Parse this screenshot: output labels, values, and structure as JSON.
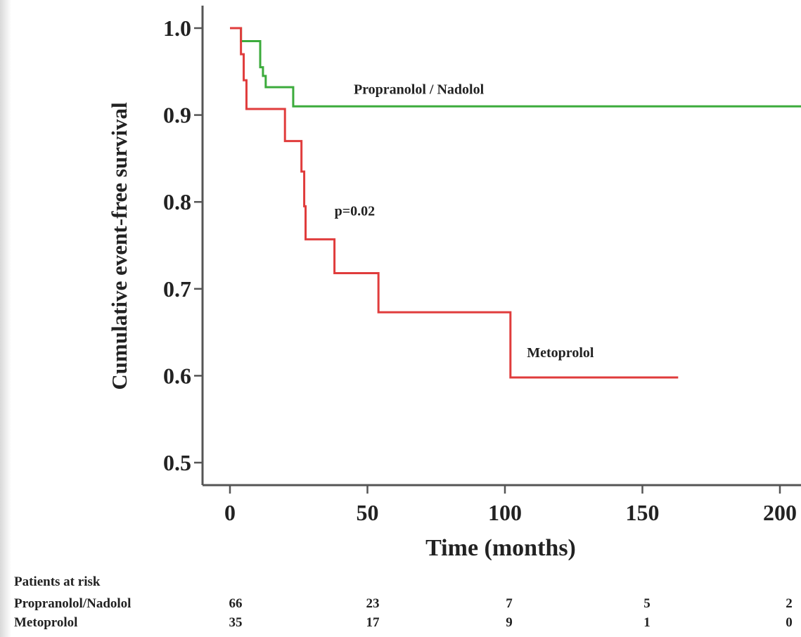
{
  "chart_data": {
    "type": "line",
    "subtype": "kaplan-meier",
    "title": "",
    "xlabel": "Time (months)",
    "ylabel": "Cumulative event-free survival",
    "xlim": [
      0,
      210
    ],
    "ylim": [
      0.5,
      1.0
    ],
    "x_ticks": [
      "0",
      "50",
      "100",
      "150",
      "200"
    ],
    "y_ticks": [
      "0.5",
      "0.6",
      "0.7",
      "0.8",
      "0.9",
      "1.0"
    ],
    "grid": false,
    "series": [
      {
        "name": "Propranolol / Nadolol",
        "color": "#3cab3c",
        "steps": [
          [
            0,
            1.0
          ],
          [
            4,
            0.985
          ],
          [
            11,
            0.955
          ],
          [
            12,
            0.945
          ],
          [
            13,
            0.932
          ],
          [
            23,
            0.91
          ],
          [
            210,
            0.91
          ]
        ]
      },
      {
        "name": "Metoprolol",
        "color": "#e03c3c",
        "steps": [
          [
            0,
            1.0
          ],
          [
            4,
            0.97
          ],
          [
            5,
            0.94
          ],
          [
            6,
            0.907
          ],
          [
            20,
            0.87
          ],
          [
            26,
            0.835
          ],
          [
            27,
            0.795
          ],
          [
            27.5,
            0.757
          ],
          [
            38,
            0.718
          ],
          [
            54,
            0.673
          ],
          [
            102,
            0.598
          ],
          [
            163,
            0.598
          ]
        ]
      }
    ],
    "annotations": [
      {
        "text": "Propranolol / Nadolol",
        "x": 45,
        "y": 0.93
      },
      {
        "text": "p=0.02",
        "x": 38,
        "y": 0.79
      },
      {
        "text": "Metoprolol",
        "x": 108,
        "y": 0.627
      }
    ]
  },
  "risk_table": {
    "title": "Patients at risk",
    "rows": [
      {
        "label": "Propranolol/Nadolol",
        "values": [
          "66",
          "23",
          "7",
          "5",
          "2"
        ]
      },
      {
        "label": "Metoprolol",
        "values": [
          "35",
          "17",
          "9",
          "1",
          "0"
        ]
      }
    ]
  }
}
